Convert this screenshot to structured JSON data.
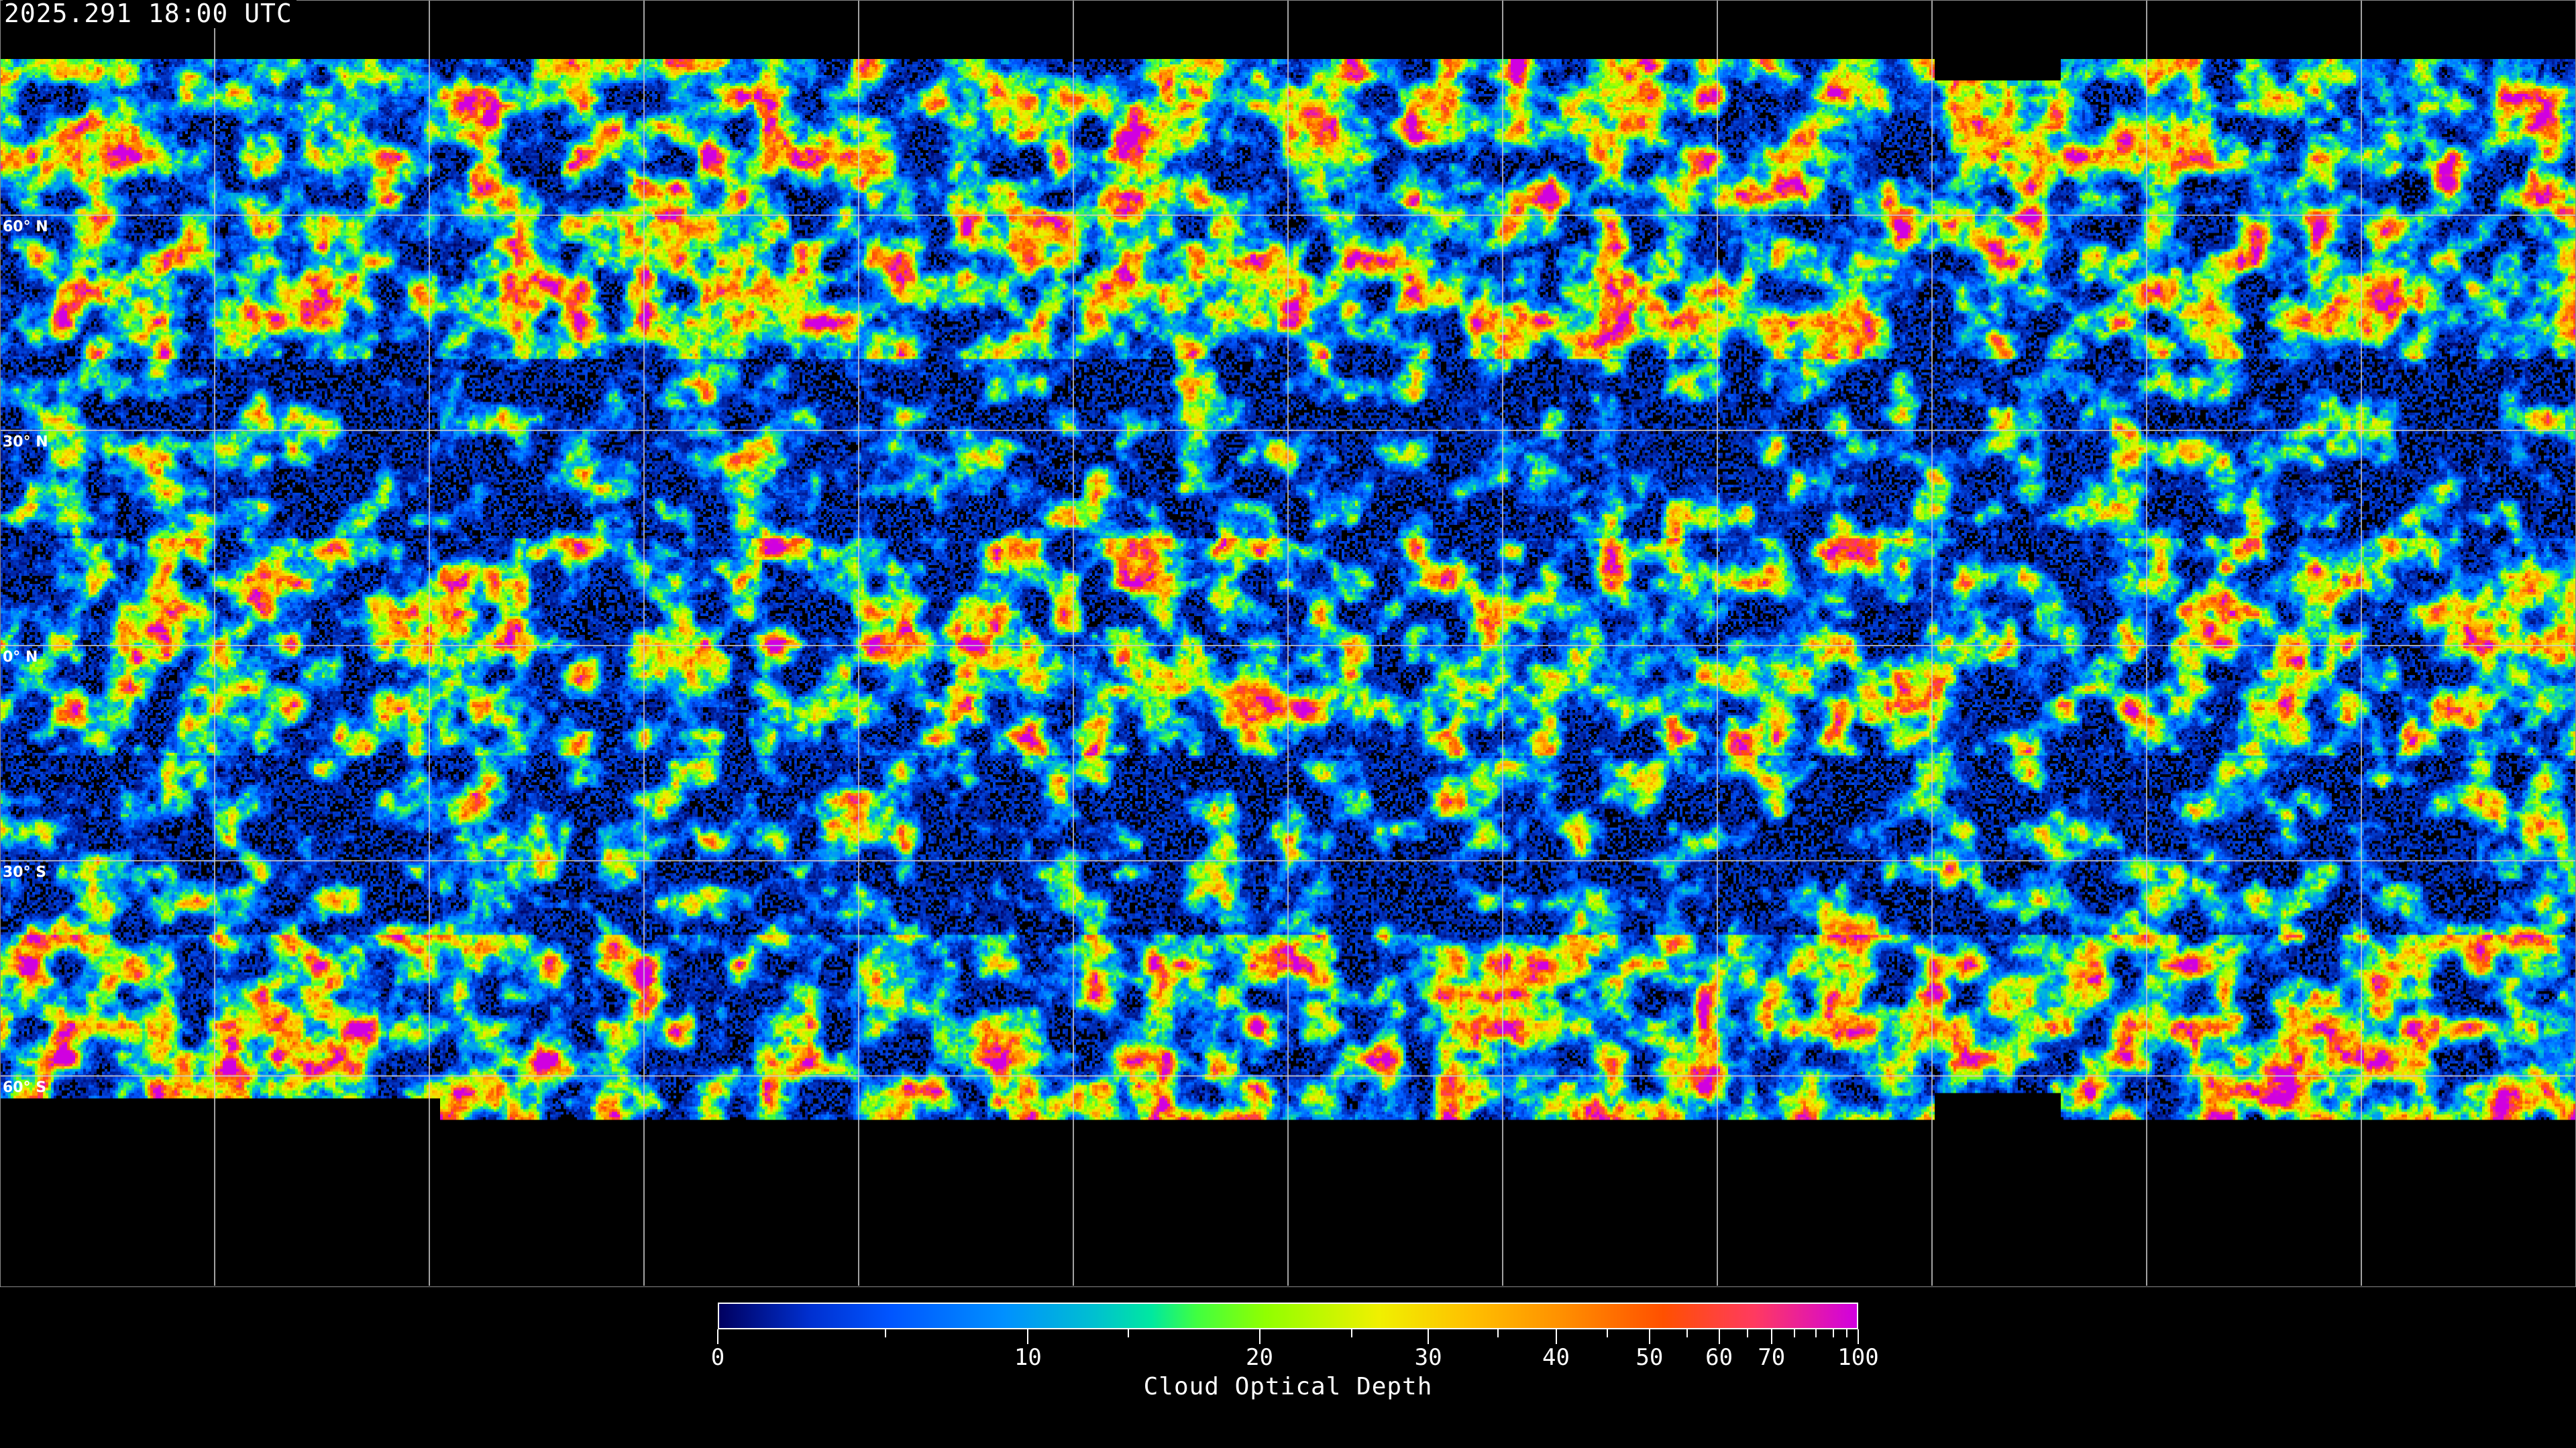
{
  "header": {
    "timestamp": "2025.291 18:00 UTC"
  },
  "map": {
    "projection": "equirectangular",
    "lat_labels": [
      "60° N",
      "30° N",
      "0° N",
      "30° S",
      "60° S"
    ],
    "gridline_spacing_deg": 30,
    "gridline_color": "#cccccc",
    "coastline_color": "#ffffff",
    "no_data_color": "#000000"
  },
  "colorbar": {
    "title": "Cloud Optical Depth",
    "tick_labels": [
      "0",
      "10",
      "20",
      "30",
      "40",
      "50",
      "60",
      "70",
      "100"
    ],
    "range": [
      0,
      100
    ],
    "colors": [
      "#000060",
      "#0055ff",
      "#00c0d0",
      "#40ff40",
      "#f0f000",
      "#ffc000",
      "#ff5000",
      "#ff3a60",
      "#d000e0"
    ]
  }
}
